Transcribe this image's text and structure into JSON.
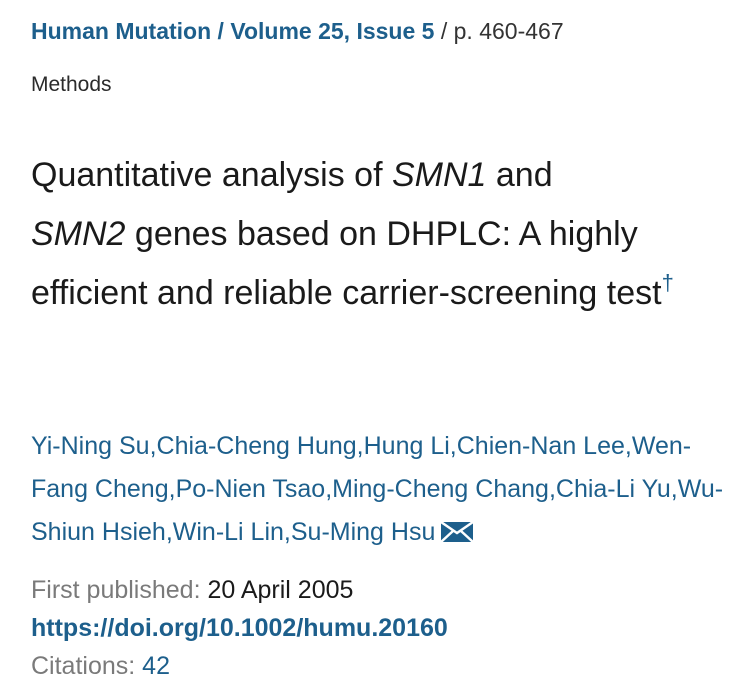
{
  "breadcrumb": {
    "journal": "Human Mutation",
    "separator": " / ",
    "volume_issue": "Volume 25, Issue 5",
    "trailing_separator": " / ",
    "pages": "p. 460-467"
  },
  "article_type": "Methods",
  "title": {
    "part1": "Quantitative analysis of ",
    "gene1": "SMN1",
    "part2": " and ",
    "gene2": "SMN2",
    "part3": " genes based on DHPLC: A highly efficient and reliable carrier-screening test",
    "footnote_mark": "†"
  },
  "authors": [
    "Yi-Ning Su",
    "Chia-Cheng Hung",
    "Hung Li",
    "Chien-Nan Lee",
    "Wen-Fang Cheng",
    "Po-Nien Tsao",
    "Ming-Cheng Chang",
    "Chia-Li Yu",
    "Wu-Shiun Hsieh",
    "Win-Li Lin",
    "Su-Ming Hsu"
  ],
  "author_separator": ",",
  "corresponding_icon": "envelope-icon",
  "publication": {
    "first_published_label": "First published: ",
    "first_published_value": "20 April 2005",
    "doi": "https://doi.org/10.1002/humu.20160",
    "citations_label": "Citations: ",
    "citations_value": "42"
  },
  "colors": {
    "link": "#1d5f8c",
    "text": "#1a1a1a",
    "muted": "#7a7a7a"
  }
}
